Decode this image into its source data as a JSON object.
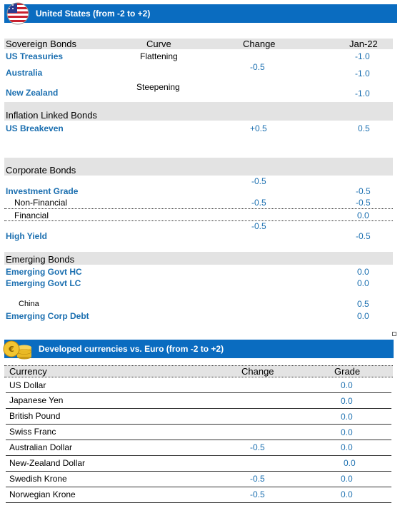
{
  "banner1": {
    "title": "United States (from -2 to +2)"
  },
  "sovereign": {
    "header": {
      "label": "Sovereign Bonds",
      "curve": "Curve",
      "change": "Change",
      "date": "Jan-22"
    },
    "rows": [
      {
        "name": "US Treasuries",
        "curve": "Flattening",
        "value": "-1.0"
      },
      {
        "name": "Australia",
        "value": "-1.0"
      },
      {
        "name": "New Zealand",
        "curve": "Steepening",
        "value": "-1.0"
      }
    ],
    "group_change": "-0.5"
  },
  "inflation": {
    "header": "Inflation Linked Bonds",
    "rows": [
      {
        "name": "US Breakeven",
        "change": "+0.5",
        "value": "0.5"
      }
    ]
  },
  "corporate": {
    "header": "Corporate Bonds",
    "ig_change": "-0.5",
    "rows": [
      {
        "name": "Investment Grade",
        "value": "-0.5"
      },
      {
        "name": "Non-Financial",
        "change": "-0.5",
        "value": "-0.5"
      },
      {
        "name": "Financial",
        "value": "0.0"
      },
      {
        "name": "High Yield",
        "value": "-0.5"
      }
    ],
    "hy_change": "-0.5"
  },
  "emerging": {
    "header": "Emerging Bonds",
    "rows": [
      {
        "name": "Emerging Govt HC",
        "value": "0.0"
      },
      {
        "name": "Emerging Govt LC",
        "value": "0.0"
      },
      {
        "name": "China",
        "value": "0.5"
      },
      {
        "name": "Emerging Corp Debt",
        "value": "0.0"
      }
    ]
  },
  "banner2": {
    "title": "Developed currencies vs. Euro (from -2 to +2)"
  },
  "currencies": {
    "header": {
      "label": "Currency",
      "change": "Change",
      "grade": "Grade"
    },
    "rows": [
      {
        "name": "US Dollar",
        "change": "",
        "grade": "0.0"
      },
      {
        "name": "Japanese Yen",
        "change": "",
        "grade": "0.0"
      },
      {
        "name": "British Pound",
        "change": "",
        "grade": "0.0"
      },
      {
        "name": "Swiss Franc",
        "change": "",
        "grade": "0.0"
      },
      {
        "name": "Australian Dollar",
        "change": "-0.5",
        "grade": "0.0"
      },
      {
        "name": "New-Zealand Dollar",
        "change": "",
        "grade": "0.0"
      },
      {
        "name": "Swedish Krone",
        "change": "-0.5",
        "grade": "0.0"
      },
      {
        "name": "Norwegian Krone",
        "change": "-0.5",
        "grade": "0.0"
      }
    ]
  },
  "colors": {
    "banner": "#0a6cc0",
    "section_bg": "#e3e3e3",
    "accent_text": "#1b6fb0"
  },
  "icons": {
    "banner1": "us-flag-icon",
    "banner2": "gold-coins-euro-icon"
  }
}
